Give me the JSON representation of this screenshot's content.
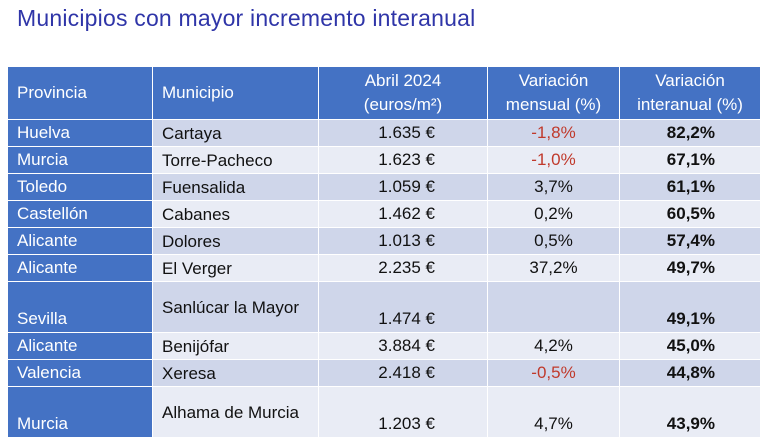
{
  "title": "Municipios con mayor incremento interanual",
  "headers": {
    "provincia": "Provincia",
    "municipio": "Municipio",
    "precio_l1": "Abril 2024",
    "precio_l2": "(euros/m²)",
    "mensual_l1": "Variación",
    "mensual_l2": "mensual (%)",
    "interanual_l1": "Variación",
    "interanual_l2": "interanual (%)"
  },
  "rows": [
    {
      "provincia": "Huelva",
      "municipio": "Cartaya",
      "precio": "1.635 €",
      "mensual": "-1,8%",
      "interanual": "82,2%"
    },
    {
      "provincia": "Murcia",
      "municipio": "Torre-Pacheco",
      "precio": "1.623 €",
      "mensual": "-1,0%",
      "interanual": "67,1%"
    },
    {
      "provincia": "Toledo",
      "municipio": "Fuensalida",
      "precio": "1.059 €",
      "mensual": "3,7%",
      "interanual": "61,1%"
    },
    {
      "provincia": "Castellón",
      "municipio": "Cabanes",
      "precio": "1.462 €",
      "mensual": "0,2%",
      "interanual": "60,5%"
    },
    {
      "provincia": "Alicante",
      "municipio": "Dolores",
      "precio": "1.013 €",
      "mensual": "0,5%",
      "interanual": "57,4%"
    },
    {
      "provincia": "Alicante",
      "municipio": "El Verger",
      "precio": "2.235 €",
      "mensual": "37,2%",
      "interanual": "49,7%"
    },
    {
      "provincia": "Sevilla",
      "municipio": "Sanlúcar la Mayor",
      "precio": "1.474 €",
      "mensual": "",
      "interanual": "49,1%"
    },
    {
      "provincia": "Alicante",
      "municipio": "Benijófar",
      "precio": "3.884 €",
      "mensual": "4,2%",
      "interanual": "45,0%"
    },
    {
      "provincia": "Valencia",
      "municipio": "Xeresa",
      "precio": "2.418 €",
      "mensual": "-0,5%",
      "interanual": "44,8%"
    },
    {
      "provincia": "Murcia",
      "municipio": "Alhama de Murcia",
      "precio": "1.203 €",
      "mensual": "4,7%",
      "interanual": "43,9%"
    }
  ],
  "colors": {
    "title": "#2f35a8",
    "header_bg": "#4472c4",
    "row_odd": "#cfd6ea",
    "row_even": "#e9ecf5",
    "negative": "#c0392b"
  }
}
